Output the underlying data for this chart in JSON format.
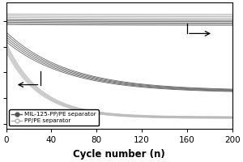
{
  "xlabel": "Cycle number (n)",
  "xlim": [
    0,
    200
  ],
  "xticks": [
    0,
    40,
    80,
    120,
    160,
    200
  ],
  "background_color": "#ffffff",
  "legend_entries": [
    "MIL-125-PP/PE separator",
    "PP/PE separator"
  ],
  "dark_color": "#555555",
  "light_color": "#b0b0b0",
  "num_dark_curves": 5,
  "num_light_curves": 5
}
